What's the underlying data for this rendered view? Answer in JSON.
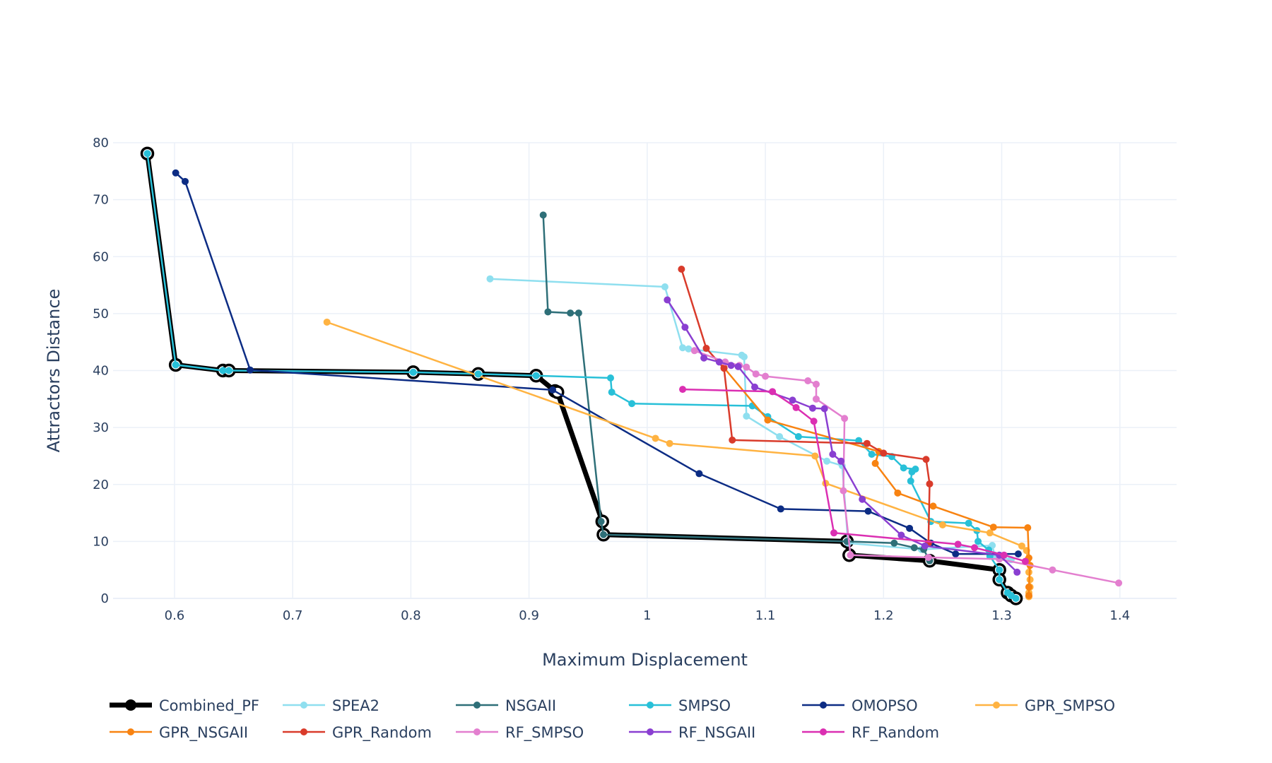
{
  "chart_data": {
    "type": "line",
    "title": "",
    "xlabel": "Maximum Displacement",
    "ylabel": "Attractors Distance",
    "xlim": [
      0.548,
      1.448
    ],
    "ylim": [
      0,
      80
    ],
    "xticks": [
      0.6,
      0.7,
      0.8,
      0.9,
      1,
      1.1,
      1.2,
      1.3,
      1.4
    ],
    "xtick_labels": [
      "0.6",
      "0.7",
      "0.8",
      "0.9",
      "1",
      "1.1",
      "1.2",
      "1.3",
      "1.4"
    ],
    "yticks": [
      0,
      10,
      20,
      30,
      40,
      50,
      60,
      70,
      80
    ],
    "ytick_labels": [
      "0",
      "10",
      "20",
      "30",
      "40",
      "50",
      "60",
      "70",
      "80"
    ],
    "grid": true,
    "legend_position": "bottom",
    "series": [
      {
        "name": "Combined_PF",
        "color": "#000000",
        "width": 7,
        "marker": 8,
        "points": [
          [
            0.577,
            78.1
          ],
          [
            0.601,
            41
          ],
          [
            0.641,
            40
          ],
          [
            0.646,
            40
          ],
          [
            0.802,
            39.7
          ],
          [
            0.857,
            39.4
          ],
          [
            0.906,
            39.1
          ],
          [
            0.922,
            36.4
          ],
          [
            0.924,
            36.2
          ],
          [
            0.962,
            13.5
          ],
          [
            0.963,
            11.2
          ],
          [
            1.169,
            10
          ],
          [
            1.171,
            7.6
          ],
          [
            1.239,
            6.6
          ],
          [
            1.298,
            5
          ],
          [
            1.298,
            3.3
          ],
          [
            1.305,
            1
          ],
          [
            1.308,
            0.5
          ],
          [
            1.312,
            0
          ]
        ]
      },
      {
        "name": "SPEA2",
        "color": "#8fdfef",
        "width": 2.5,
        "marker": 5,
        "points": [
          [
            0.867,
            56.1
          ],
          [
            1.015,
            54.7
          ],
          [
            1.03,
            44
          ],
          [
            1.035,
            43.8
          ],
          [
            1.08,
            42.7
          ],
          [
            1.082,
            42.4
          ],
          [
            1.084,
            32
          ],
          [
            1.112,
            28.4
          ],
          [
            1.152,
            24.1
          ],
          [
            1.165,
            23.3
          ],
          [
            1.17,
            9.7
          ],
          [
            1.232,
            8.6
          ],
          [
            1.292,
            9.3
          ],
          [
            1.294,
            7.6
          ],
          [
            1.308,
            6.8
          ]
        ]
      },
      {
        "name": "NSGAII",
        "color": "#2e6f78",
        "width": 2.5,
        "marker": 5,
        "points": [
          [
            0.912,
            67.3
          ],
          [
            0.916,
            50.3
          ],
          [
            0.935,
            50.1
          ],
          [
            0.942,
            50.1
          ],
          [
            0.961,
            13.5
          ],
          [
            0.963,
            11.2
          ],
          [
            1.169,
            10
          ],
          [
            1.209,
            9.7
          ],
          [
            1.226,
            8.9
          ],
          [
            1.234,
            8.6
          ],
          [
            1.239,
            6.6
          ]
        ]
      },
      {
        "name": "SMPSO",
        "color": "#28c0d8",
        "width": 2.5,
        "marker": 5,
        "points": [
          [
            0.577,
            78.1
          ],
          [
            0.601,
            41
          ],
          [
            0.641,
            40
          ],
          [
            0.646,
            40
          ],
          [
            0.802,
            39.7
          ],
          [
            0.857,
            39.4
          ],
          [
            0.906,
            39.1
          ],
          [
            0.969,
            38.7
          ],
          [
            0.97,
            36.2
          ],
          [
            0.987,
            34.2
          ],
          [
            1.089,
            33.8
          ],
          [
            1.102,
            31.9
          ],
          [
            1.128,
            28.4
          ],
          [
            1.179,
            27.7
          ],
          [
            1.19,
            25.3
          ],
          [
            1.207,
            24.9
          ],
          [
            1.217,
            22.9
          ],
          [
            1.227,
            22.7
          ],
          [
            1.224,
            22.2
          ],
          [
            1.223,
            20.6
          ],
          [
            1.24,
            13.5
          ],
          [
            1.272,
            13.2
          ],
          [
            1.279,
            11.9
          ],
          [
            1.28,
            10
          ],
          [
            1.289,
            8.5
          ],
          [
            1.29,
            7.4
          ],
          [
            1.298,
            5
          ],
          [
            1.298,
            3.3
          ],
          [
            1.305,
            1
          ],
          [
            1.308,
            0.5
          ],
          [
            1.312,
            0
          ]
        ]
      },
      {
        "name": "OMOPSO",
        "color": "#0c2c84",
        "width": 2.5,
        "marker": 5,
        "points": [
          [
            0.601,
            74.7
          ],
          [
            0.609,
            73.2
          ],
          [
            0.664,
            40.1
          ],
          [
            0.92,
            36.6
          ],
          [
            1.044,
            21.9
          ],
          [
            1.113,
            15.7
          ],
          [
            1.187,
            15.3
          ],
          [
            1.222,
            12.3
          ],
          [
            1.24,
            9.7
          ],
          [
            1.261,
            7.8
          ],
          [
            1.314,
            7.8
          ]
        ]
      },
      {
        "name": "GPR_SMPSO",
        "color": "#ffb342",
        "width": 2.5,
        "marker": 5,
        "points": [
          [
            0.729,
            48.5
          ],
          [
            1.007,
            28.1
          ],
          [
            1.019,
            27.2
          ],
          [
            1.142,
            25
          ],
          [
            1.151,
            20.2
          ],
          [
            1.25,
            12.9
          ],
          [
            1.29,
            11.5
          ],
          [
            1.317,
            9.2
          ],
          [
            1.321,
            8.4
          ],
          [
            1.322,
            6.8
          ],
          [
            1.323,
            4.6
          ],
          [
            1.324,
            3.3
          ],
          [
            1.324,
            2
          ],
          [
            1.323,
            1
          ],
          [
            1.323,
            0.3
          ]
        ]
      },
      {
        "name": "GPR_NSGAII",
        "color": "#f88311",
        "width": 2.5,
        "marker": 5,
        "points": [
          [
            1.065,
            40.5
          ],
          [
            1.102,
            31.3
          ],
          [
            1.196,
            25.8
          ],
          [
            1.193,
            23.7
          ],
          [
            1.212,
            18.5
          ],
          [
            1.242,
            16.2
          ],
          [
            1.293,
            12.5
          ],
          [
            1.322,
            12.4
          ],
          [
            1.323,
            7.1
          ],
          [
            1.324,
            5.8
          ],
          [
            1.323,
            2
          ],
          [
            1.323,
            0.5
          ]
        ]
      },
      {
        "name": "GPR_Random",
        "color": "#d93b2b",
        "width": 2.5,
        "marker": 5,
        "points": [
          [
            1.029,
            57.8
          ],
          [
            1.05,
            43.9
          ],
          [
            1.065,
            40.4
          ],
          [
            1.072,
            27.8
          ],
          [
            1.186,
            27.2
          ],
          [
            1.2,
            25.5
          ],
          [
            1.236,
            24.4
          ],
          [
            1.239,
            20.1
          ],
          [
            1.238,
            9.7
          ]
        ]
      },
      {
        "name": "RF_SMPSO",
        "color": "#e37fcf",
        "width": 2.5,
        "marker": 5,
        "points": [
          [
            1.04,
            43.5
          ],
          [
            1.066,
            41.5
          ],
          [
            1.078,
            40.9
          ],
          [
            1.084,
            40.6
          ],
          [
            1.092,
            39.4
          ],
          [
            1.1,
            39
          ],
          [
            1.136,
            38.2
          ],
          [
            1.143,
            37.6
          ],
          [
            1.143,
            35
          ],
          [
            1.167,
            31.6
          ],
          [
            1.166,
            18.9
          ],
          [
            1.172,
            7.6
          ],
          [
            1.238,
            7.2
          ],
          [
            1.298,
            6.9
          ],
          [
            1.343,
            5
          ],
          [
            1.399,
            2.7
          ]
        ]
      },
      {
        "name": "RF_NSGAII",
        "color": "#8a3fd1",
        "width": 2.5,
        "marker": 5,
        "points": [
          [
            1.017,
            52.4
          ],
          [
            1.032,
            47.6
          ],
          [
            1.048,
            42.2
          ],
          [
            1.061,
            41.5
          ],
          [
            1.071,
            40.9
          ],
          [
            1.077,
            40.7
          ],
          [
            1.091,
            37.1
          ],
          [
            1.123,
            34.8
          ],
          [
            1.14,
            33.4
          ],
          [
            1.15,
            33.3
          ],
          [
            1.157,
            25.3
          ],
          [
            1.164,
            24.1
          ],
          [
            1.182,
            17.4
          ],
          [
            1.215,
            11.1
          ],
          [
            1.235,
            9.2
          ],
          [
            1.298,
            7.6
          ],
          [
            1.313,
            4.6
          ]
        ]
      },
      {
        "name": "RF_Random",
        "color": "#db2fb2",
        "width": 2.5,
        "marker": 5,
        "points": [
          [
            1.03,
            36.7
          ],
          [
            1.106,
            36.3
          ],
          [
            1.126,
            33.5
          ],
          [
            1.141,
            31.1
          ],
          [
            1.158,
            11.5
          ],
          [
            1.263,
            9.5
          ],
          [
            1.277,
            8.9
          ],
          [
            1.302,
            7.6
          ],
          [
            1.32,
            6.5
          ]
        ]
      }
    ]
  }
}
